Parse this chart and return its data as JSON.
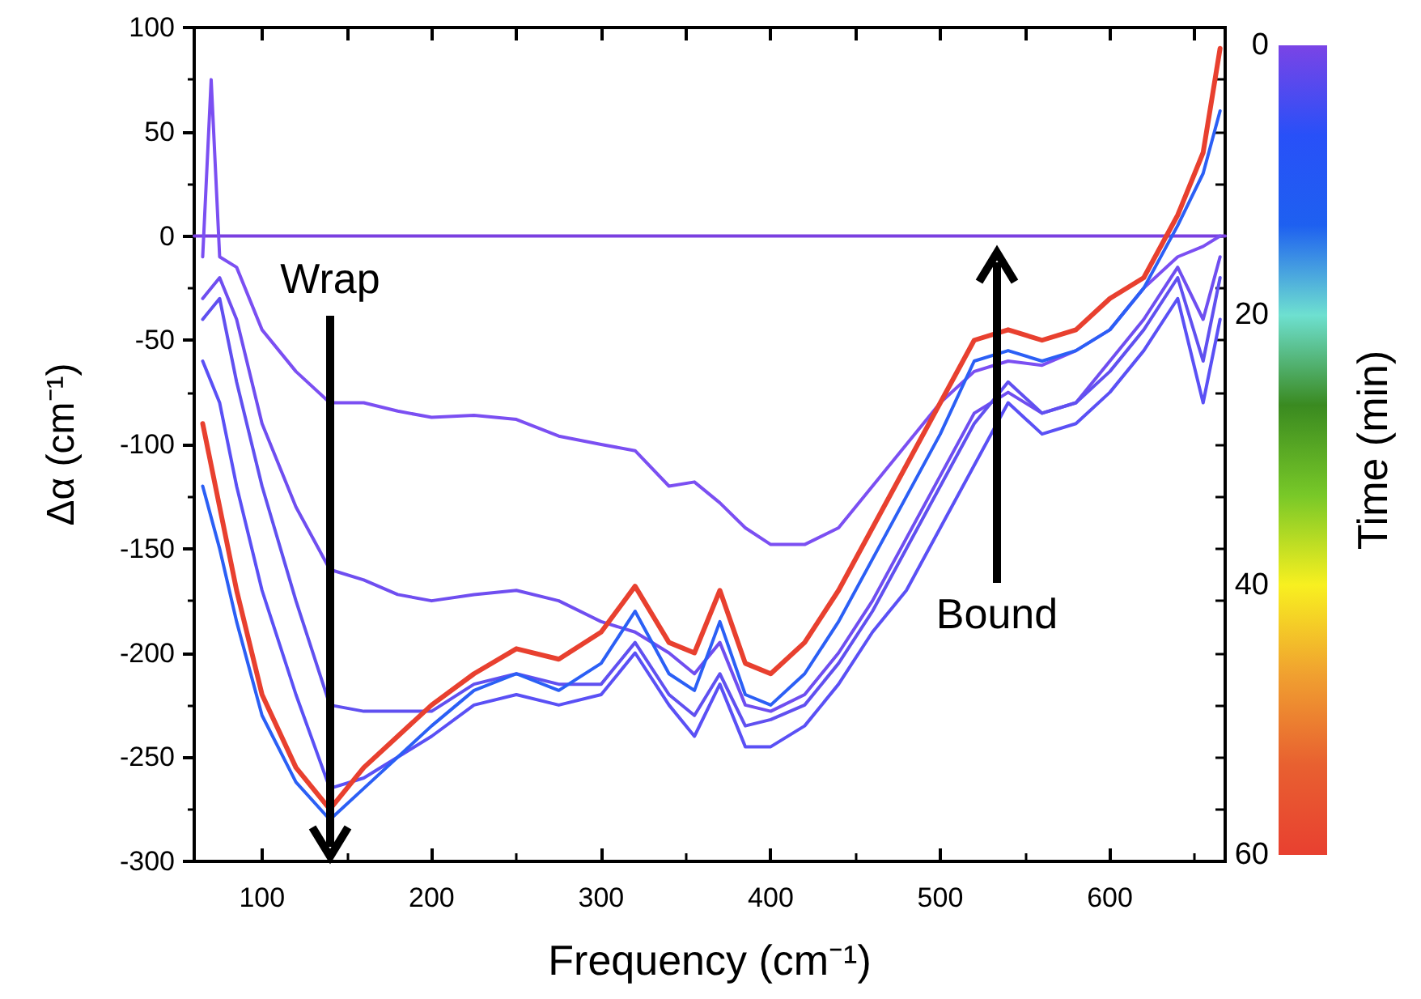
{
  "chart_data": {
    "type": "line",
    "xlabel": "Frequency (cm⁻¹)",
    "ylabel": "Δα (cm⁻¹)",
    "clabel": "Time (min)",
    "clim": [
      0,
      60
    ],
    "cticks": [
      0,
      20,
      40,
      60
    ],
    "xlim": [
      60,
      668
    ],
    "xticks": [
      100,
      200,
      300,
      400,
      500,
      600
    ],
    "ylim": [
      -300,
      100
    ],
    "yticks": [
      -300,
      -250,
      -200,
      -150,
      -100,
      -50,
      0,
      50,
      100
    ],
    "grid": false,
    "legend": false,
    "marker": "none",
    "line_style": "solid",
    "annotations": [
      "Wrap",
      "Bound"
    ],
    "series": [
      {
        "color": "#7a3fe0",
        "x": [
          60,
          668
        ],
        "values": [
          0,
          0
        ]
      },
      {
        "color": "#7b4ff2",
        "x": [
          65,
          70,
          75,
          85,
          100,
          120,
          140,
          160,
          180,
          200,
          225,
          250,
          275,
          300,
          320,
          340,
          355,
          370,
          385,
          400,
          420,
          440,
          460,
          480,
          500,
          520,
          540,
          560,
          580,
          600,
          620,
          640,
          655,
          665
        ],
        "values": [
          -10,
          75,
          -10,
          -15,
          -45,
          -65,
          -80,
          -80,
          -84,
          -87,
          -86,
          -88,
          -96,
          -100,
          -103,
          -120,
          -118,
          -128,
          -140,
          -148,
          -148,
          -140,
          -120,
          -100,
          -80,
          -65,
          -60,
          -62,
          -55,
          -45,
          -25,
          -10,
          -5,
          0
        ]
      },
      {
        "color": "#6f4ef0",
        "x": [
          65,
          75,
          85,
          100,
          120,
          140,
          160,
          180,
          200,
          225,
          250,
          275,
          300,
          320,
          340,
          355,
          370,
          385,
          400,
          420,
          440,
          460,
          480,
          500,
          520,
          540,
          560,
          580,
          600,
          620,
          640,
          655,
          665
        ],
        "values": [
          -30,
          -20,
          -40,
          -90,
          -130,
          -160,
          -165,
          -172,
          -175,
          -172,
          -170,
          -175,
          -185,
          -190,
          -200,
          -210,
          -195,
          -225,
          -228,
          -220,
          -200,
          -175,
          -145,
          -115,
          -85,
          -75,
          -85,
          -80,
          -60,
          -40,
          -15,
          -40,
          -10
        ]
      },
      {
        "color": "#6050f0",
        "x": [
          65,
          75,
          85,
          100,
          120,
          140,
          160,
          180,
          200,
          225,
          250,
          275,
          300,
          320,
          340,
          355,
          370,
          385,
          400,
          420,
          440,
          460,
          480,
          500,
          520,
          540,
          560,
          580,
          600,
          620,
          640,
          655,
          665
        ],
        "values": [
          -40,
          -30,
          -70,
          -120,
          -175,
          -225,
          -228,
          -228,
          -228,
          -215,
          -210,
          -215,
          -215,
          -195,
          -220,
          -230,
          -210,
          -235,
          -232,
          -225,
          -205,
          -180,
          -150,
          -120,
          -90,
          -70,
          -85,
          -80,
          -65,
          -45,
          -20,
          -60,
          -20
        ]
      },
      {
        "color": "#5a50f5",
        "x": [
          65,
          75,
          85,
          100,
          120,
          140,
          160,
          180,
          200,
          225,
          250,
          275,
          300,
          320,
          340,
          355,
          370,
          385,
          400,
          420,
          440,
          460,
          480,
          500,
          520,
          540,
          560,
          580,
          600,
          620,
          640,
          655,
          665
        ],
        "values": [
          -60,
          -80,
          -120,
          -170,
          -220,
          -265,
          -260,
          -250,
          -240,
          -225,
          -220,
          -225,
          -220,
          -200,
          -225,
          -240,
          -215,
          -245,
          -245,
          -235,
          -215,
          -190,
          -170,
          -140,
          -110,
          -80,
          -95,
          -90,
          -75,
          -55,
          -30,
          -80,
          -40
        ]
      },
      {
        "color": "#2b5ff5",
        "x": [
          65,
          75,
          85,
          100,
          120,
          140,
          160,
          180,
          200,
          225,
          250,
          275,
          300,
          320,
          340,
          355,
          370,
          385,
          400,
          420,
          440,
          460,
          480,
          500,
          520,
          540,
          560,
          580,
          600,
          620,
          640,
          655,
          665
        ],
        "values": [
          -120,
          -150,
          -185,
          -230,
          -262,
          -280,
          -265,
          -250,
          -235,
          -218,
          -210,
          -218,
          -205,
          -180,
          -210,
          -218,
          -185,
          -220,
          -225,
          -210,
          -185,
          -155,
          -125,
          -95,
          -60,
          -55,
          -60,
          -55,
          -45,
          -25,
          5,
          30,
          60
        ]
      },
      {
        "color": "#e8402f",
        "x": [
          65,
          75,
          85,
          100,
          120,
          140,
          160,
          180,
          200,
          225,
          250,
          275,
          300,
          320,
          340,
          355,
          370,
          385,
          400,
          420,
          440,
          460,
          480,
          500,
          520,
          540,
          560,
          580,
          600,
          620,
          640,
          655,
          665
        ],
        "values": [
          -90,
          -130,
          -170,
          -220,
          -255,
          -275,
          -255,
          -240,
          -225,
          -210,
          -198,
          -203,
          -190,
          -168,
          -195,
          -200,
          -170,
          -205,
          -210,
          -195,
          -170,
          -140,
          -110,
          -80,
          -50,
          -45,
          -50,
          -45,
          -30,
          -20,
          10,
          40,
          90
        ]
      }
    ]
  }
}
